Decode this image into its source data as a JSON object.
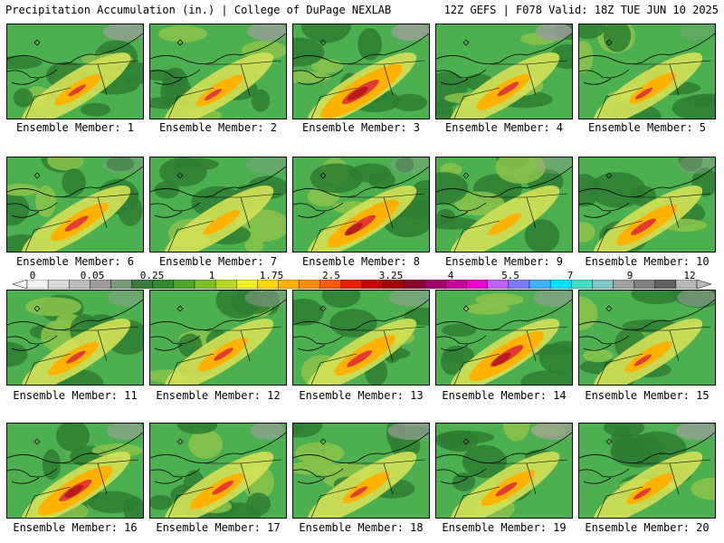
{
  "header": {
    "title_left": "Precipitation Accumulation (in.) | College of DuPage NEXLAB",
    "title_right": "12Z GEFS | F078 Valid: 18Z TUE JUN 10 2025"
  },
  "panels": [
    {
      "label": "Ensemble Member: 1",
      "intensity": 0.45
    },
    {
      "label": "Ensemble Member: 2",
      "intensity": 0.45
    },
    {
      "label": "Ensemble Member: 3",
      "intensity": 0.95
    },
    {
      "label": "Ensemble Member: 4",
      "intensity": 0.55
    },
    {
      "label": "Ensemble Member: 5",
      "intensity": 0.45
    },
    {
      "label": "Ensemble Member: 6",
      "intensity": 0.6
    },
    {
      "label": "Ensemble Member: 7",
      "intensity": 0.3
    },
    {
      "label": "Ensemble Member: 8",
      "intensity": 0.8
    },
    {
      "label": "Ensemble Member: 9",
      "intensity": 0.25
    },
    {
      "label": "Ensemble Member: 10",
      "intensity": 0.65
    },
    {
      "label": "Ensemble Member: 11",
      "intensity": 0.5
    },
    {
      "label": "Ensemble Member: 12",
      "intensity": 0.5
    },
    {
      "label": "Ensemble Member: 13",
      "intensity": 0.65
    },
    {
      "label": "Ensemble Member: 14",
      "intensity": 0.85
    },
    {
      "label": "Ensemble Member: 15",
      "intensity": 0.45
    },
    {
      "label": "Ensemble Member: 16",
      "intensity": 0.85
    },
    {
      "label": "Ensemble Member: 17",
      "intensity": 0.55
    },
    {
      "label": "Ensemble Member: 18",
      "intensity": 0.45
    },
    {
      "label": "Ensemble Member: 19",
      "intensity": 0.55
    },
    {
      "label": "Ensemble Member: 20",
      "intensity": 0.45
    }
  ],
  "colorbar": {
    "ticks": [
      "0",
      "0.05",
      "0.25",
      "1",
      "1.75",
      "2.5",
      "3.25",
      "4",
      "5.5",
      "7",
      "9",
      "12"
    ],
    "colors": [
      "#f2f2f2",
      "#d8d8d8",
      "#bdbdbd",
      "#9a9a9a",
      "#7a9a7a",
      "#3a7a3a",
      "#2e8b2e",
      "#4ea82e",
      "#7cc02a",
      "#b6d82a",
      "#f0f02a",
      "#ffd700",
      "#ffb000",
      "#ff8c00",
      "#ff5a00",
      "#e82000",
      "#c80000",
      "#a00000",
      "#8b0030",
      "#a0006a",
      "#c8009a",
      "#e800d0",
      "#c060ff",
      "#7a7aff",
      "#40b0ff",
      "#00e0ff",
      "#40e0c0",
      "#80c8c8",
      "#a0a0a0",
      "#808080",
      "#606060",
      "#b8b8b8"
    ]
  },
  "palette": {
    "green_dark": "#2e7d32",
    "green_mid": "#4caf50",
    "green_light": "#8bc34a",
    "yellow": "#d4e157",
    "orange": "#ffb300",
    "red": "#e53935",
    "darkred": "#b71c1c",
    "gray": "#9e9e9e"
  }
}
